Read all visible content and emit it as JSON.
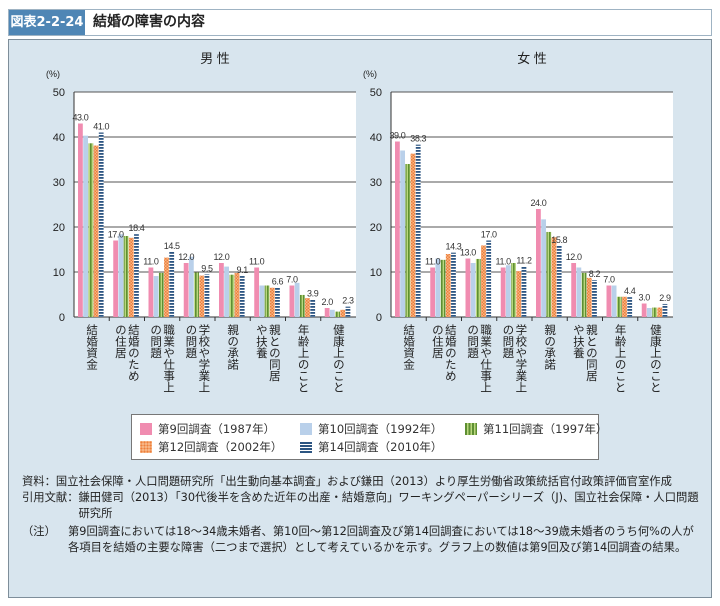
{
  "header": {
    "figure_no": "図表2-2-24",
    "title": "結婚の障害の内容"
  },
  "series_colors": [
    "#f08cb0",
    "#b9d0ea",
    "#6f9e3e",
    "#f29a5c",
    "#2c5582"
  ],
  "chart_data": [
    {
      "type": "bar",
      "title": "男 性",
      "ylabel": "(%)",
      "ylim": [
        0,
        50
      ],
      "yticks": [
        "0",
        "10",
        "20",
        "30",
        "40",
        "50"
      ],
      "grid": true,
      "categories": [
        "結婚資金",
        "結婚のため\nの住居",
        "職業や仕事上\nの問題",
        "学校や学業上\nの問題",
        "親の承諾",
        "親との同居\nや扶養",
        "年齢上のこと",
        "健康上のこと"
      ],
      "series": [
        {
          "name": "第9回調査（1987年）",
          "values": [
            43.0,
            17.0,
            11.0,
            12.0,
            12.0,
            11.0,
            7.0,
            2.0
          ]
        },
        {
          "name": "第10回調査（1992年）",
          "values": [
            40.3,
            18.4,
            9.1,
            13.4,
            11.2,
            7.0,
            7.6,
            1.6
          ]
        },
        {
          "name": "第11回調査（1997年）",
          "values": [
            38.6,
            18.0,
            9.8,
            9.9,
            9.4,
            7.0,
            4.9,
            1.2
          ]
        },
        {
          "name": "第12回調査（2002年）",
          "values": [
            38.1,
            17.6,
            13.2,
            9.2,
            9.8,
            6.5,
            4.2,
            1.6
          ]
        },
        {
          "name": "第14回調査（2010年）",
          "values": [
            41.0,
            18.4,
            14.5,
            9.5,
            9.1,
            6.6,
            3.9,
            2.3
          ]
        }
      ],
      "data_labels": {
        "first": [
          "43.0",
          "17.0",
          "11.0",
          "12.0",
          "12.0",
          "11.0",
          "7.0",
          "2.0"
        ],
        "last": [
          "41.0",
          "18.4",
          "14.5",
          "9.5",
          "9.1",
          "6.6",
          "3.9",
          "2.3"
        ]
      }
    },
    {
      "type": "bar",
      "title": "女 性",
      "ylabel": "(%)",
      "ylim": [
        0,
        50
      ],
      "yticks": [
        "0",
        "10",
        "20",
        "30",
        "40",
        "50"
      ],
      "grid": true,
      "categories": [
        "結婚資金",
        "結婚のため\nの住居",
        "職業や仕事上\nの問題",
        "学校や学業上\nの問題",
        "親の承諾",
        "親との同居\nや扶養",
        "年齢上のこと",
        "健康上のこと"
      ],
      "series": [
        {
          "name": "第9回調査（1987年）",
          "values": [
            39.0,
            11.0,
            13.0,
            11.0,
            24.0,
            12.0,
            7.0,
            3.0
          ]
        },
        {
          "name": "第10回調査（1992年）",
          "values": [
            37.0,
            13.0,
            12.0,
            11.5,
            21.7,
            11.0,
            7.0,
            2.0
          ]
        },
        {
          "name": "第11回調査（1997年）",
          "values": [
            34.0,
            12.7,
            12.9,
            12.0,
            18.9,
            9.8,
            4.5,
            2.1
          ]
        },
        {
          "name": "第12回調査（2002年）",
          "values": [
            36.3,
            14.0,
            15.9,
            10.2,
            17.7,
            8.7,
            4.5,
            2.1
          ]
        },
        {
          "name": "第14回調査（2010年）",
          "values": [
            38.3,
            14.3,
            17.0,
            11.2,
            15.8,
            8.2,
            4.4,
            2.9
          ]
        }
      ],
      "data_labels": {
        "first": [
          "39.0",
          "11.0",
          "13.0",
          "11.0",
          "24.0",
          "12.0",
          "7.0",
          "3.0"
        ],
        "last": [
          "38.3",
          "14.3",
          "17.0",
          "11.2",
          "15.8",
          "8.2",
          "4.4",
          "2.9"
        ]
      }
    }
  ],
  "legend": [
    "第9回調査（1987年）",
    "第10回調査（1992年）",
    "第11回調査（1997年）",
    "第12回調査（2002年）",
    "第14回調査（2010年）"
  ],
  "notes": [
    {
      "label": "資料：",
      "text": "国立社会保障・人口問題研究所「出生動向基本調査」および鎌田（2013）より厚生労働省政策統括官付政策評価官室作成"
    },
    {
      "label": "引用文献：",
      "text": "鎌田健司（2013）「30代後半を含めた近年の出産・結婚意向」ワーキングペーパーシリーズ（J)、国立社会保障・人口問題研究所"
    },
    {
      "label": "（注）",
      "text": "第9回調査においては18～34歳未婚者、第10回～第12回調査及び第14回調査においては18～39歳未婚者のうち何%の人が各項目を結婚の主要な障害（二つまで選択）として考えているかを示す。グラフ上の数値は第9回及び第14回調査の結果。"
    }
  ]
}
